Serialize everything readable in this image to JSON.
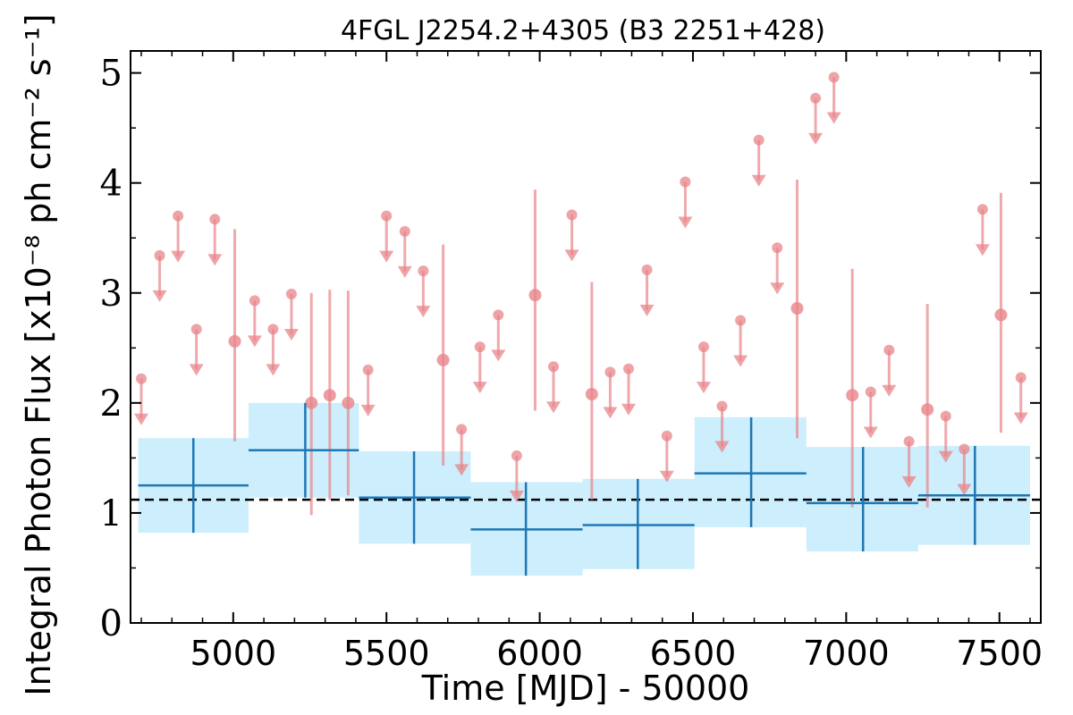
{
  "chart_data": {
    "type": "scatter",
    "title": "4FGL J2254.2+4305 (B3 2251+428)",
    "xlabel": "Time [MJD] - 50000",
    "ylabel": "Integral Photon Flux [x10⁻⁸ ph cm⁻² s⁻¹]",
    "xlim": [
      4665,
      7635
    ],
    "ylim": [
      0,
      5.2
    ],
    "xticks": [
      5000,
      5500,
      6000,
      6500,
      7000,
      7500
    ],
    "xtick_labels": [
      "5000",
      "5500",
      "6000",
      "6500",
      "7000",
      "7500"
    ],
    "yticks": [
      0,
      1,
      2,
      3,
      4,
      5
    ],
    "ytick_labels": [
      "0",
      "1",
      "2",
      "3",
      "4",
      "5"
    ],
    "average_flux": 1.12,
    "colors": {
      "short_bins": "#e8848a",
      "long_bins": "#1f77b4",
      "long_bins_band": "#cdeefc",
      "average_line": "#000000"
    },
    "long_bins": [
      {
        "x": 4870,
        "x_start": 4690,
        "x_end": 5050,
        "y": 1.25,
        "y_low": 0.82,
        "y_high": 1.68
      },
      {
        "x": 5235,
        "x_start": 5050,
        "x_end": 5410,
        "y": 1.57,
        "y_low": 1.14,
        "y_high": 2.0
      },
      {
        "x": 5590,
        "x_start": 5410,
        "x_end": 5775,
        "y": 1.14,
        "y_low": 0.72,
        "y_high": 1.56
      },
      {
        "x": 5955,
        "x_start": 5775,
        "x_end": 6140,
        "y": 0.85,
        "y_low": 0.43,
        "y_high": 1.28
      },
      {
        "x": 6320,
        "x_start": 6140,
        "x_end": 6505,
        "y": 0.89,
        "y_low": 0.49,
        "y_high": 1.31
      },
      {
        "x": 6690,
        "x_start": 6505,
        "x_end": 6870,
        "y": 1.36,
        "y_low": 0.87,
        "y_high": 1.87
      },
      {
        "x": 7055,
        "x_start": 6870,
        "x_end": 7235,
        "y": 1.09,
        "y_low": 0.65,
        "y_high": 1.6
      },
      {
        "x": 7420,
        "x_start": 7235,
        "x_end": 7600,
        "y": 1.16,
        "y_low": 0.71,
        "y_high": 1.61
      }
    ],
    "short_bin_upper_limits": [
      {
        "x": 4700,
        "y": 2.22
      },
      {
        "x": 4760,
        "y": 3.34
      },
      {
        "x": 4820,
        "y": 3.7
      },
      {
        "x": 4880,
        "y": 2.67
      },
      {
        "x": 4940,
        "y": 3.67
      },
      {
        "x": 5070,
        "y": 2.93
      },
      {
        "x": 5130,
        "y": 2.67
      },
      {
        "x": 5190,
        "y": 2.99
      },
      {
        "x": 5440,
        "y": 2.3
      },
      {
        "x": 5500,
        "y": 3.7
      },
      {
        "x": 5560,
        "y": 3.56
      },
      {
        "x": 5620,
        "y": 3.2
      },
      {
        "x": 5745,
        "y": 1.76
      },
      {
        "x": 5805,
        "y": 2.51
      },
      {
        "x": 5865,
        "y": 2.8
      },
      {
        "x": 5925,
        "y": 1.52
      },
      {
        "x": 6045,
        "y": 2.33
      },
      {
        "x": 6105,
        "y": 3.71
      },
      {
        "x": 6230,
        "y": 2.28
      },
      {
        "x": 6290,
        "y": 2.31
      },
      {
        "x": 6350,
        "y": 3.21
      },
      {
        "x": 6415,
        "y": 1.7
      },
      {
        "x": 6475,
        "y": 4.01
      },
      {
        "x": 6535,
        "y": 2.51
      },
      {
        "x": 6595,
        "y": 1.97
      },
      {
        "x": 6655,
        "y": 2.75
      },
      {
        "x": 6715,
        "y": 4.39
      },
      {
        "x": 6775,
        "y": 3.41
      },
      {
        "x": 6900,
        "y": 4.77
      },
      {
        "x": 6960,
        "y": 4.96
      },
      {
        "x": 7080,
        "y": 2.1
      },
      {
        "x": 7140,
        "y": 2.48
      },
      {
        "x": 7205,
        "y": 1.65
      },
      {
        "x": 7325,
        "y": 1.88
      },
      {
        "x": 7385,
        "y": 1.58
      },
      {
        "x": 7445,
        "y": 3.76
      },
      {
        "x": 7570,
        "y": 2.23
      }
    ],
    "short_bin_detections": [
      {
        "x": 5005,
        "y": 2.56,
        "y_low": 1.65,
        "y_high": 3.58
      },
      {
        "x": 5255,
        "y": 2.0,
        "y_low": 0.98,
        "y_high": 3.0
      },
      {
        "x": 5315,
        "y": 2.07,
        "y_low": 1.12,
        "y_high": 3.03
      },
      {
        "x": 5375,
        "y": 2.0,
        "y_low": 1.16,
        "y_high": 3.02
      },
      {
        "x": 5685,
        "y": 2.39,
        "y_low": 1.43,
        "y_high": 3.44
      },
      {
        "x": 5985,
        "y": 2.98,
        "y_low": 1.93,
        "y_high": 3.94
      },
      {
        "x": 6170,
        "y": 2.08,
        "y_low": 1.12,
        "y_high": 3.1
      },
      {
        "x": 6840,
        "y": 2.86,
        "y_low": 1.68,
        "y_high": 4.03
      },
      {
        "x": 7020,
        "y": 2.07,
        "y_low": 1.05,
        "y_high": 3.22
      },
      {
        "x": 7265,
        "y": 1.94,
        "y_low": 1.05,
        "y_high": 2.9
      },
      {
        "x": 7505,
        "y": 2.8,
        "y_low": 1.73,
        "y_high": 3.91
      }
    ]
  }
}
